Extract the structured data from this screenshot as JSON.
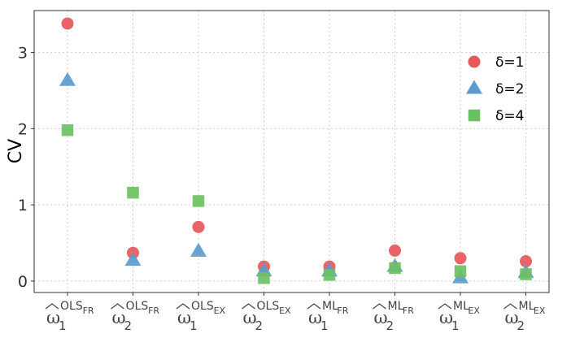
{
  "chart_data": {
    "type": "scatter",
    "ylabel": "CV",
    "xlabel": "",
    "ylim": [
      -0.15,
      3.55
    ],
    "yticks": [
      0,
      1,
      2,
      3
    ],
    "grid": true,
    "legend_position": "right",
    "categories": [
      {
        "main": "ω",
        "sub": "1",
        "sup": "OLS",
        "supsub": "FR"
      },
      {
        "main": "ω",
        "sub": "2",
        "sup": "OLS",
        "supsub": "FR"
      },
      {
        "main": "ω",
        "sub": "1",
        "sup": "OLS",
        "supsub": "EX"
      },
      {
        "main": "ω",
        "sub": "2",
        "sup": "OLS",
        "supsub": "EX"
      },
      {
        "main": "ω",
        "sub": "1",
        "sup": "ML",
        "supsub": "FR"
      },
      {
        "main": "ω",
        "sub": "2",
        "sup": "ML",
        "supsub": "FR"
      },
      {
        "main": "ω",
        "sub": "1",
        "sup": "ML",
        "supsub": "EX"
      },
      {
        "main": "ω",
        "sub": "2",
        "sup": "ML",
        "supsub": "EX"
      }
    ],
    "series": [
      {
        "name": "δ=1",
        "marker": "circle",
        "color": "#e8575a",
        "values": [
          3.38,
          0.37,
          0.71,
          0.19,
          0.19,
          0.4,
          0.3,
          0.26
        ]
      },
      {
        "name": "δ=2",
        "marker": "triangle",
        "color": "#5b9bcd",
        "values": [
          2.63,
          0.27,
          0.39,
          0.13,
          0.13,
          0.19,
          0.04,
          0.11
        ]
      },
      {
        "name": "δ=4",
        "marker": "square",
        "color": "#6cc064",
        "values": [
          1.98,
          1.16,
          1.05,
          0.04,
          0.08,
          0.17,
          0.13,
          0.09
        ]
      }
    ]
  }
}
